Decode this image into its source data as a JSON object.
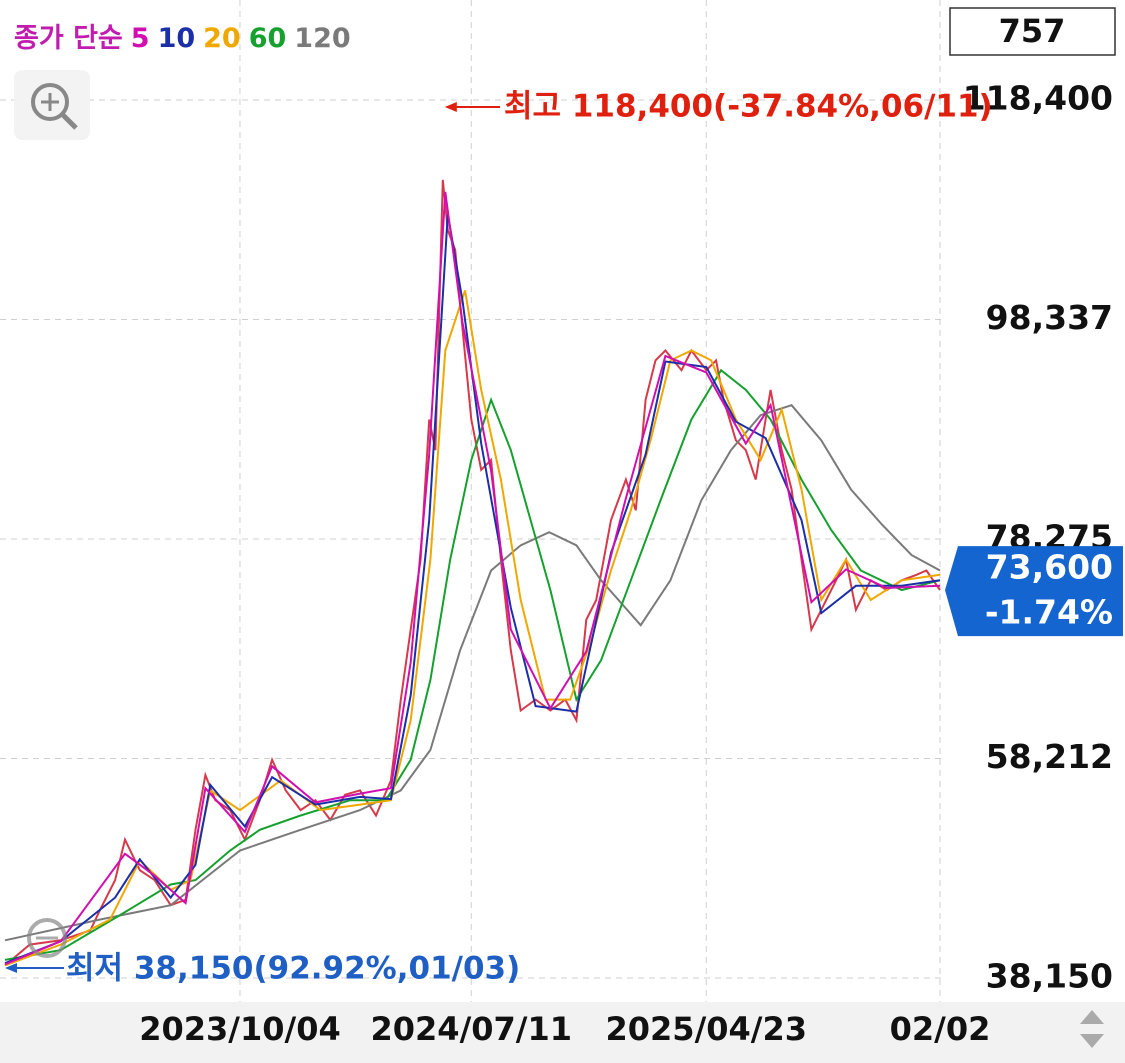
{
  "chart_data": {
    "type": "line",
    "bar_count": "757",
    "legend_label": "종가 단순",
    "xlim": [
      0,
      756
    ],
    "ylim": [
      38150,
      118400
    ],
    "yticks": [
      {
        "value": 38150,
        "label": "38,150"
      },
      {
        "value": 58212,
        "label": "58,212"
      },
      {
        "value": 78275,
        "label": "78,275"
      },
      {
        "value": 98337,
        "label": "98,337"
      },
      {
        "value": 118400,
        "label": "118,400"
      }
    ],
    "xticks": [
      {
        "value": 190,
        "label": "2023/10/04"
      },
      {
        "value": 377,
        "label": "2024/07/11"
      },
      {
        "value": 567,
        "label": "2025/04/23"
      },
      {
        "value": 756,
        "label": "02/02"
      }
    ],
    "grid": true,
    "close": {
      "color": "#d63a4a",
      "x": [
        0,
        20,
        45,
        69,
        77,
        89,
        97,
        109,
        121,
        134,
        146,
        154,
        162,
        170,
        182,
        194,
        206,
        216,
        227,
        239,
        251,
        263,
        275,
        287,
        300,
        312,
        320,
        328,
        336,
        343,
        348,
        354,
        358,
        364,
        370,
        377,
        385,
        393,
        401,
        409,
        417,
        429,
        441,
        453,
        462,
        470,
        478,
        490,
        502,
        510,
        518,
        526,
        534,
        547,
        555,
        567,
        575,
        581,
        591,
        599,
        607,
        615,
        619,
        628,
        636,
        644,
        652,
        660,
        672,
        680,
        688,
        700,
        713,
        725,
        737,
        745,
        756
      ],
      "values": [
        39300,
        41200,
        41600,
        42500,
        44400,
        47100,
        50800,
        48000,
        47100,
        44800,
        45300,
        51700,
        56700,
        54400,
        53500,
        50800,
        54400,
        58100,
        55300,
        53500,
        54400,
        52600,
        54900,
        55300,
        53000,
        56200,
        63600,
        70000,
        76400,
        89200,
        86400,
        111100,
        106500,
        104700,
        97400,
        89200,
        84600,
        85500,
        76400,
        68100,
        62600,
        63600,
        62600,
        63600,
        61700,
        70900,
        72700,
        80000,
        83700,
        80900,
        91000,
        94600,
        95500,
        93700,
        95500,
        93700,
        94600,
        91000,
        87300,
        86400,
        83700,
        89200,
        91900,
        86400,
        82800,
        76400,
        70000,
        71800,
        74500,
        76400,
        71800,
        74500,
        73600,
        74500,
        75000,
        75400,
        73600
      ]
    },
    "series": [
      {
        "name": "5",
        "color": "#d10fb0",
        "x": [
          0,
          45,
          97,
          121,
          146,
          162,
          194,
          216,
          251,
          287,
          312,
          328,
          343,
          356,
          370,
          393,
          409,
          441,
          470,
          502,
          534,
          567,
          599,
          619,
          652,
          680,
          713,
          756
        ],
        "values": [
          39400,
          41500,
          49500,
          47500,
          45000,
          55500,
          51500,
          57500,
          54200,
          55000,
          55500,
          67000,
          86000,
          110000,
          98000,
          84500,
          70000,
          62800,
          68000,
          82000,
          95000,
          93500,
          87000,
          90500,
          72500,
          75500,
          73800,
          74000
        ]
      },
      {
        "name": "10",
        "color": "#1a2fa8",
        "x": [
          0,
          45,
          89,
          109,
          134,
          154,
          166,
          194,
          216,
          251,
          287,
          312,
          328,
          343,
          358,
          370,
          385,
          409,
          429,
          462,
          490,
          518,
          534,
          567,
          591,
          615,
          644,
          660,
          688,
          725,
          756
        ],
        "values": [
          39500,
          41500,
          45500,
          49000,
          45500,
          48500,
          55800,
          52000,
          56500,
          54000,
          54700,
          54500,
          64000,
          80000,
          108000,
          100000,
          87000,
          72000,
          63000,
          62500,
          77000,
          86000,
          94500,
          94000,
          89000,
          87500,
          80000,
          71500,
          74000,
          74000,
          74500
        ]
      },
      {
        "name": "20",
        "color": "#f0a800",
        "x": [
          0,
          45,
          85,
          109,
          134,
          150,
          166,
          190,
          223,
          255,
          287,
          312,
          328,
          344,
          356,
          372,
          385,
          401,
          417,
          437,
          457,
          474,
          490,
          506,
          522,
          538,
          555,
          571,
          591,
          611,
          628,
          644,
          660,
          680,
          700,
          725,
          756
        ],
        "values": [
          39300,
          41200,
          43500,
          48900,
          46200,
          47100,
          55300,
          53500,
          56200,
          53500,
          54000,
          54400,
          61700,
          76400,
          95500,
          101000,
          91900,
          83700,
          72700,
          63600,
          63600,
          69000,
          75400,
          80900,
          87300,
          94600,
          95500,
          94600,
          89200,
          85500,
          90100,
          82800,
          72700,
          76400,
          72700,
          74500,
          75000
        ]
      },
      {
        "name": "60",
        "color": "#16a02e",
        "x": [
          0,
          45,
          93,
          134,
          154,
          182,
          206,
          239,
          279,
          308,
          328,
          344,
          360,
          377,
          393,
          409,
          425,
          441,
          462,
          482,
          506,
          530,
          555,
          579,
          599,
          619,
          644,
          668,
          692,
          725,
          756
        ],
        "values": [
          39800,
          40700,
          43900,
          46700,
          47100,
          49800,
          51700,
          53000,
          54400,
          54400,
          58100,
          65400,
          76400,
          85500,
          91000,
          86400,
          80000,
          73600,
          63600,
          67200,
          74500,
          81800,
          89200,
          93700,
          91900,
          89200,
          83700,
          79100,
          75400,
          73600,
          74500
        ]
      },
      {
        "name": "120",
        "color": "#7a7a7a",
        "x": [
          0,
          77,
          134,
          190,
          239,
          287,
          320,
          344,
          368,
          393,
          417,
          440,
          462,
          482,
          514,
          538,
          563,
          587,
          611,
          636,
          660,
          684,
          709,
          733,
          756
        ],
        "values": [
          41600,
          43500,
          44800,
          49800,
          51700,
          53500,
          55300,
          59000,
          68100,
          75400,
          77700,
          78900,
          77700,
          74500,
          70400,
          74500,
          81800,
          86400,
          89600,
          90500,
          87300,
          82800,
          79600,
          76800,
          75400
        ]
      }
    ],
    "high": {
      "label": "최고 118,400(-37.84%,06/11)",
      "value": 118400,
      "x": 354,
      "color": "#e0200e"
    },
    "low": {
      "label": "최저 38,150(92.92%,01/03)",
      "value": 38150,
      "x": 0,
      "color": "#1f5fc4"
    },
    "last": {
      "value_label": "73,600",
      "change": "-1.74%",
      "value": 73600,
      "color": "#1565d0"
    }
  }
}
